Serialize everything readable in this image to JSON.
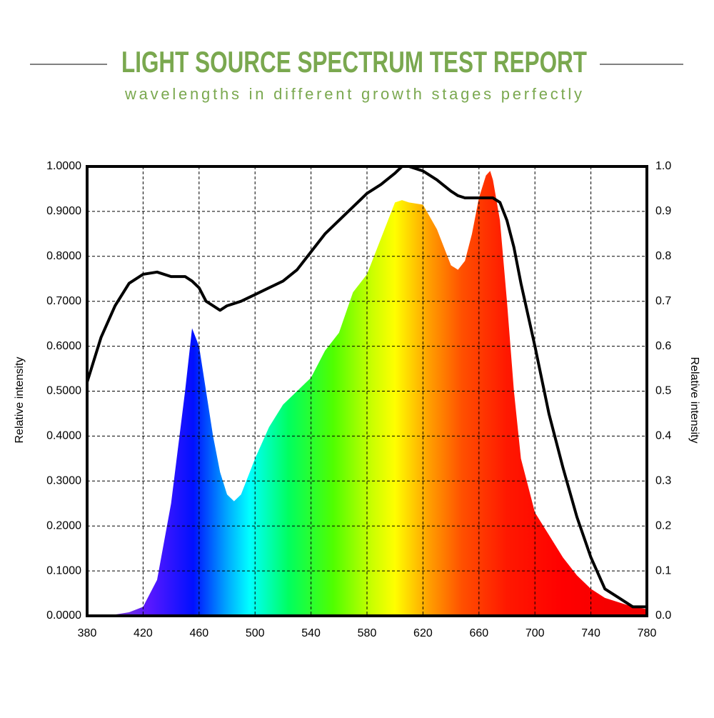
{
  "chart_data": {
    "type": "area",
    "title": "LIGHT SOURCE SPECTRUM TEST REPORT",
    "subtitle": "wavelengths in different growth stages perfectly",
    "y_label": "Relative intensity",
    "y2_label": "Relative intensity",
    "x": [
      380,
      390,
      400,
      410,
      420,
      430,
      440,
      450,
      455,
      460,
      465,
      470,
      475,
      480,
      485,
      490,
      500,
      510,
      520,
      530,
      540,
      550,
      560,
      570,
      580,
      590,
      600,
      605,
      610,
      620,
      630,
      640,
      645,
      650,
      655,
      660,
      665,
      668,
      670,
      675,
      680,
      685,
      690,
      700,
      710,
      720,
      730,
      740,
      750,
      760,
      770,
      780
    ],
    "series": [
      {
        "type": "area",
        "values": [
          0,
          0.001,
          0.003,
          0.008,
          0.02,
          0.08,
          0.25,
          0.5,
          0.64,
          0.6,
          0.5,
          0.4,
          0.32,
          0.27,
          0.255,
          0.27,
          0.35,
          0.42,
          0.47,
          0.5,
          0.53,
          0.59,
          0.63,
          0.72,
          0.76,
          0.84,
          0.92,
          0.925,
          0.92,
          0.915,
          0.86,
          0.78,
          0.77,
          0.79,
          0.85,
          0.93,
          0.98,
          0.99,
          0.97,
          0.88,
          0.7,
          0.5,
          0.35,
          0.23,
          0.18,
          0.13,
          0.09,
          0.06,
          0.04,
          0.03,
          0.02,
          0.015
        ]
      },
      {
        "type": "line",
        "axis": "y2",
        "color": "#000000",
        "values": [
          0.52,
          0.62,
          0.69,
          0.74,
          0.76,
          0.765,
          0.755,
          0.755,
          0.745,
          0.73,
          0.7,
          0.69,
          0.68,
          0.69,
          0.695,
          0.7,
          0.715,
          0.73,
          0.745,
          0.77,
          0.81,
          0.85,
          0.88,
          0.91,
          0.94,
          0.96,
          0.985,
          1.0,
          1.0,
          0.99,
          0.97,
          0.945,
          0.935,
          0.93,
          0.93,
          0.93,
          0.93,
          0.93,
          0.93,
          0.92,
          0.88,
          0.82,
          0.74,
          0.6,
          0.45,
          0.33,
          0.22,
          0.13,
          0.06,
          0.04,
          0.02,
          0.02
        ]
      }
    ],
    "xlim": [
      380,
      780
    ],
    "xticks": [
      380,
      420,
      460,
      500,
      540,
      580,
      620,
      660,
      700,
      740,
      780
    ],
    "ylim": [
      0,
      1
    ],
    "yticks": [
      {
        "value": 0,
        "label": "0.0000"
      },
      {
        "value": 0.1,
        "label": "0.1000"
      },
      {
        "value": 0.2,
        "label": "0.2000"
      },
      {
        "value": 0.3,
        "label": "0.3000"
      },
      {
        "value": 0.4,
        "label": "0.4000"
      },
      {
        "value": 0.5,
        "label": "0.5000"
      },
      {
        "value": 0.6,
        "label": "0.6000"
      },
      {
        "value": 0.7,
        "label": "0.7000"
      },
      {
        "value": 0.8,
        "label": "0.8000"
      },
      {
        "value": 0.9,
        "label": "0.9000"
      },
      {
        "value": 1,
        "label": "1.0000"
      }
    ],
    "y2lim": [
      0,
      1
    ],
    "y2ticks": [
      {
        "value": 0,
        "label": "0.0"
      },
      0.1,
      0.2,
      0.3,
      0.4,
      0.5,
      0.6,
      0.7,
      0.8,
      0.9,
      {
        "value": 1,
        "label": "1.0"
      }
    ],
    "grid": true
  }
}
